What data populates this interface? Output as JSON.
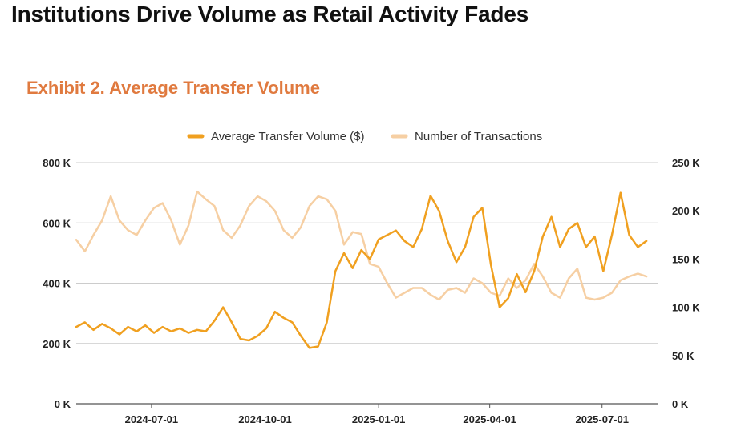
{
  "page": {
    "title": "Institutions Drive Volume as Retail Activity Fades",
    "exhibit_title": "Exhibit 2. Average Transfer Volume"
  },
  "colors": {
    "primary": "#f0a020",
    "secondary": "#f6cfa3",
    "accent": "#e07a3f",
    "grid": "#cccccc"
  },
  "chart_data": {
    "type": "line",
    "title": "Exhibit 2. Average Transfer Volume",
    "legend_position": "top-center",
    "x_start": "2024-05-01",
    "x_end": "2025-08-15",
    "x_ticks": [
      "2024-07-01",
      "2024-10-01",
      "2025-01-01",
      "2025-04-01",
      "2025-07-01"
    ],
    "y_left": {
      "ticks": [
        "0 K",
        "200 K",
        "400 K",
        "600 K",
        "800 K"
      ],
      "min": 0,
      "max": 800000
    },
    "y_right": {
      "ticks": [
        "0 K",
        "50 K",
        "100 K",
        "150 K",
        "200 K",
        "250 K"
      ],
      "min": 0,
      "max": 250000
    },
    "series": [
      {
        "name": "Average Transfer Volume ($)",
        "axis": "left",
        "color": "#f0a020",
        "points": [
          [
            "2024-05-01",
            255000
          ],
          [
            "2024-05-08",
            270000
          ],
          [
            "2024-05-15",
            245000
          ],
          [
            "2024-05-22",
            265000
          ],
          [
            "2024-05-29",
            250000
          ],
          [
            "2024-06-05",
            230000
          ],
          [
            "2024-06-12",
            255000
          ],
          [
            "2024-06-19",
            240000
          ],
          [
            "2024-06-26",
            260000
          ],
          [
            "2024-07-03",
            235000
          ],
          [
            "2024-07-10",
            255000
          ],
          [
            "2024-07-17",
            240000
          ],
          [
            "2024-07-24",
            250000
          ],
          [
            "2024-07-31",
            235000
          ],
          [
            "2024-08-07",
            245000
          ],
          [
            "2024-08-14",
            240000
          ],
          [
            "2024-08-21",
            275000
          ],
          [
            "2024-08-28",
            320000
          ],
          [
            "2024-09-04",
            270000
          ],
          [
            "2024-09-11",
            215000
          ],
          [
            "2024-09-18",
            210000
          ],
          [
            "2024-09-25",
            225000
          ],
          [
            "2024-10-02",
            250000
          ],
          [
            "2024-10-09",
            305000
          ],
          [
            "2024-10-16",
            285000
          ],
          [
            "2024-10-23",
            270000
          ],
          [
            "2024-10-30",
            225000
          ],
          [
            "2024-11-06",
            185000
          ],
          [
            "2024-11-13",
            190000
          ],
          [
            "2024-11-20",
            270000
          ],
          [
            "2024-11-27",
            440000
          ],
          [
            "2024-12-04",
            500000
          ],
          [
            "2024-12-11",
            450000
          ],
          [
            "2024-12-18",
            510000
          ],
          [
            "2024-12-25",
            480000
          ],
          [
            "2025-01-01",
            545000
          ],
          [
            "2025-01-08",
            560000
          ],
          [
            "2025-01-15",
            575000
          ],
          [
            "2025-01-22",
            540000
          ],
          [
            "2025-01-29",
            520000
          ],
          [
            "2025-02-05",
            580000
          ],
          [
            "2025-02-12",
            690000
          ],
          [
            "2025-02-19",
            640000
          ],
          [
            "2025-02-26",
            540000
          ],
          [
            "2025-03-05",
            470000
          ],
          [
            "2025-03-12",
            520000
          ],
          [
            "2025-03-19",
            620000
          ],
          [
            "2025-03-26",
            650000
          ],
          [
            "2025-04-02",
            460000
          ],
          [
            "2025-04-09",
            320000
          ],
          [
            "2025-04-16",
            350000
          ],
          [
            "2025-04-23",
            430000
          ],
          [
            "2025-04-30",
            370000
          ],
          [
            "2025-05-07",
            440000
          ],
          [
            "2025-05-14",
            555000
          ],
          [
            "2025-05-21",
            620000
          ],
          [
            "2025-05-28",
            520000
          ],
          [
            "2025-06-04",
            580000
          ],
          [
            "2025-06-11",
            600000
          ],
          [
            "2025-06-18",
            520000
          ],
          [
            "2025-06-25",
            555000
          ],
          [
            "2025-07-02",
            440000
          ],
          [
            "2025-07-09",
            560000
          ],
          [
            "2025-07-16",
            700000
          ],
          [
            "2025-07-23",
            560000
          ],
          [
            "2025-07-30",
            520000
          ],
          [
            "2025-08-06",
            540000
          ]
        ]
      },
      {
        "name": "Number of Transactions",
        "axis": "right",
        "color": "#f6cfa3",
        "points": [
          [
            "2024-05-01",
            170000
          ],
          [
            "2024-05-08",
            158000
          ],
          [
            "2024-05-15",
            175000
          ],
          [
            "2024-05-22",
            190000
          ],
          [
            "2024-05-29",
            215000
          ],
          [
            "2024-06-05",
            190000
          ],
          [
            "2024-06-12",
            180000
          ],
          [
            "2024-06-19",
            175000
          ],
          [
            "2024-06-26",
            190000
          ],
          [
            "2024-07-03",
            203000
          ],
          [
            "2024-07-10",
            208000
          ],
          [
            "2024-07-17",
            190000
          ],
          [
            "2024-07-24",
            165000
          ],
          [
            "2024-07-31",
            185000
          ],
          [
            "2024-08-07",
            220000
          ],
          [
            "2024-08-14",
            212000
          ],
          [
            "2024-08-21",
            205000
          ],
          [
            "2024-08-28",
            180000
          ],
          [
            "2024-09-04",
            172000
          ],
          [
            "2024-09-11",
            185000
          ],
          [
            "2024-09-18",
            205000
          ],
          [
            "2024-09-25",
            215000
          ],
          [
            "2024-10-02",
            210000
          ],
          [
            "2024-10-09",
            200000
          ],
          [
            "2024-10-16",
            180000
          ],
          [
            "2024-10-23",
            172000
          ],
          [
            "2024-10-30",
            183000
          ],
          [
            "2024-11-06",
            205000
          ],
          [
            "2024-11-13",
            215000
          ],
          [
            "2024-11-20",
            212000
          ],
          [
            "2024-11-27",
            200000
          ],
          [
            "2024-12-04",
            165000
          ],
          [
            "2024-12-11",
            178000
          ],
          [
            "2024-12-18",
            176000
          ],
          [
            "2024-12-25",
            145000
          ],
          [
            "2025-01-01",
            142000
          ],
          [
            "2025-01-08",
            125000
          ],
          [
            "2025-01-15",
            110000
          ],
          [
            "2025-01-22",
            115000
          ],
          [
            "2025-01-29",
            120000
          ],
          [
            "2025-02-05",
            120000
          ],
          [
            "2025-02-12",
            113000
          ],
          [
            "2025-02-19",
            108000
          ],
          [
            "2025-02-26",
            118000
          ],
          [
            "2025-03-05",
            120000
          ],
          [
            "2025-03-12",
            115000
          ],
          [
            "2025-03-19",
            130000
          ],
          [
            "2025-03-26",
            125000
          ],
          [
            "2025-04-02",
            115000
          ],
          [
            "2025-04-09",
            112000
          ],
          [
            "2025-04-16",
            130000
          ],
          [
            "2025-04-23",
            120000
          ],
          [
            "2025-04-30",
            128000
          ],
          [
            "2025-05-07",
            145000
          ],
          [
            "2025-05-14",
            132000
          ],
          [
            "2025-05-21",
            115000
          ],
          [
            "2025-05-28",
            110000
          ],
          [
            "2025-06-04",
            130000
          ],
          [
            "2025-06-11",
            140000
          ],
          [
            "2025-06-18",
            110000
          ],
          [
            "2025-06-25",
            108000
          ],
          [
            "2025-07-02",
            110000
          ],
          [
            "2025-07-09",
            115000
          ],
          [
            "2025-07-16",
            128000
          ],
          [
            "2025-07-23",
            132000
          ],
          [
            "2025-07-30",
            135000
          ],
          [
            "2025-08-06",
            132000
          ]
        ]
      }
    ]
  }
}
